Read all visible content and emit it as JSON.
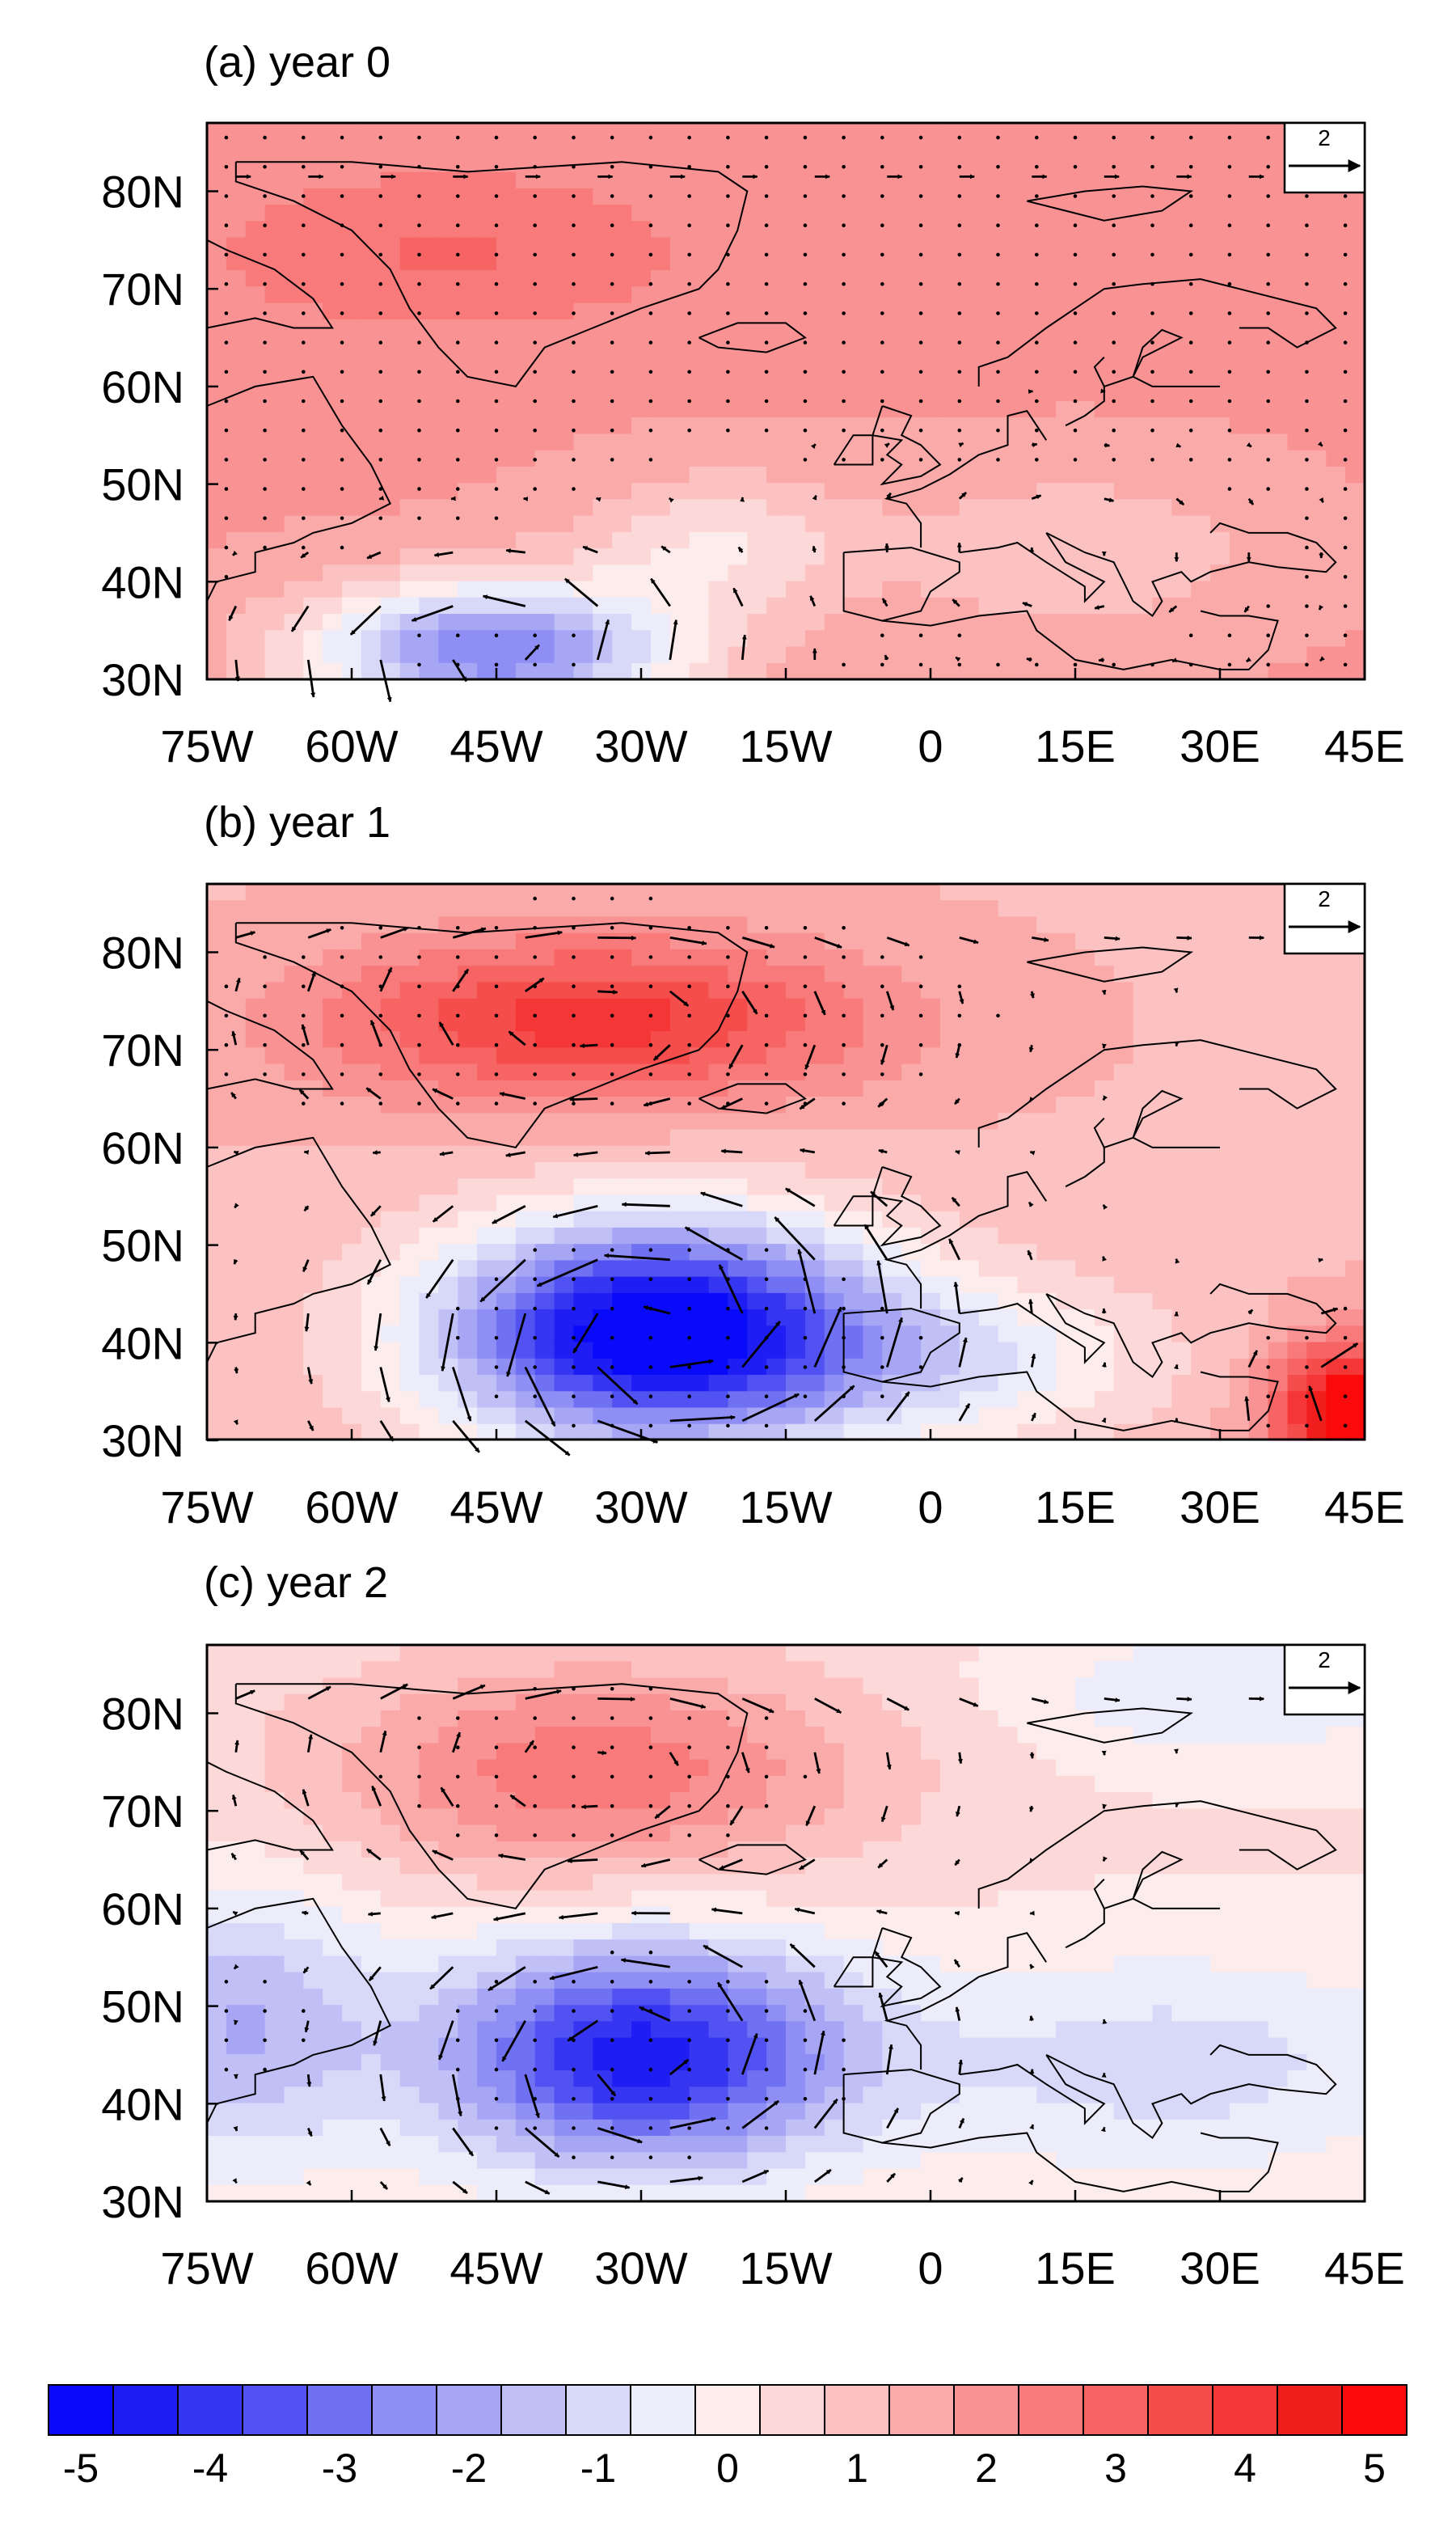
{
  "chart_data": {
    "type": "heatmap",
    "colorbar": {
      "min": -5.25,
      "max": 5.25,
      "step": 0.5,
      "labels": [
        -5,
        -4,
        -3,
        -2,
        -1,
        0,
        1,
        2,
        3,
        4,
        5
      ],
      "colors": [
        "#0a0afa",
        "#1e1ef4",
        "#3535f2",
        "#5252f2",
        "#7070f2",
        "#8e8ef5",
        "#a6a6f5",
        "#c0c0f7",
        "#d8d8f9",
        "#ececfb",
        "#fdecec",
        "#fdd8d8",
        "#fcc2c2",
        "#fbaaaa",
        "#f99292",
        "#f87a7a",
        "#f66464",
        "#f54c4c",
        "#f43636",
        "#f11e1e",
        "#fa0a0a"
      ]
    },
    "x_ticks": [
      "75W",
      "60W",
      "45W",
      "30W",
      "15W",
      "0",
      "15E",
      "30E",
      "45E"
    ],
    "y_ticks": [
      "30N",
      "40N",
      "50N",
      "60N",
      "70N",
      "80N"
    ],
    "xlim": [
      -75,
      45
    ],
    "ylim": [
      30,
      87
    ],
    "reference_vector": 2,
    "panels": [
      {
        "title": "(a) year 0",
        "base": 1.8,
        "centers": [
          {
            "lon": -45,
            "lat": 33,
            "amp": -4.5,
            "sx": 14,
            "sy": 5,
            "circ": -1
          },
          {
            "lon": 15,
            "lat": 43,
            "amp": -1.0,
            "sx": 14,
            "sy": 6,
            "circ": 1
          },
          {
            "lon": -22,
            "lat": 44,
            "amp": -1.5,
            "sx": 10,
            "sy": 5,
            "circ": 0
          },
          {
            "lon": -50,
            "lat": 74,
            "amp": 1.0,
            "sx": 18,
            "sy": 6,
            "circ": 0
          }
        ]
      },
      {
        "title": "(b) year 1",
        "base": 1.2,
        "centers": [
          {
            "lon": -28,
            "lat": 41,
            "amp": -6.8,
            "sx": 16,
            "sy": 8,
            "circ": -1
          },
          {
            "lon": -35,
            "lat": 73,
            "amp": 2.8,
            "sx": 20,
            "sy": 6,
            "circ": 1
          },
          {
            "lon": 5,
            "lat": 38,
            "amp": -1.5,
            "sx": 14,
            "sy": 6,
            "circ": 0
          },
          {
            "lon": 44,
            "lat": 33,
            "amp": 4.5,
            "sx": 6,
            "sy": 5,
            "circ": 1
          }
        ]
      },
      {
        "title": "(c) year 2",
        "base": 0.3,
        "centers": [
          {
            "lon": -30,
            "lat": 45,
            "amp": -4.8,
            "sx": 15,
            "sy": 8,
            "circ": -1
          },
          {
            "lon": -35,
            "lat": 74,
            "amp": 2.3,
            "sx": 20,
            "sy": 8,
            "circ": 1
          },
          {
            "lon": -72,
            "lat": 48,
            "amp": -2.0,
            "sx": 10,
            "sy": 10,
            "circ": 0
          },
          {
            "lon": 25,
            "lat": 44,
            "amp": -1.3,
            "sx": 20,
            "sy": 8,
            "circ": 0
          },
          {
            "lon": 30,
            "lat": 82,
            "amp": -1.0,
            "sx": 15,
            "sy": 5,
            "circ": 0
          }
        ]
      }
    ]
  }
}
